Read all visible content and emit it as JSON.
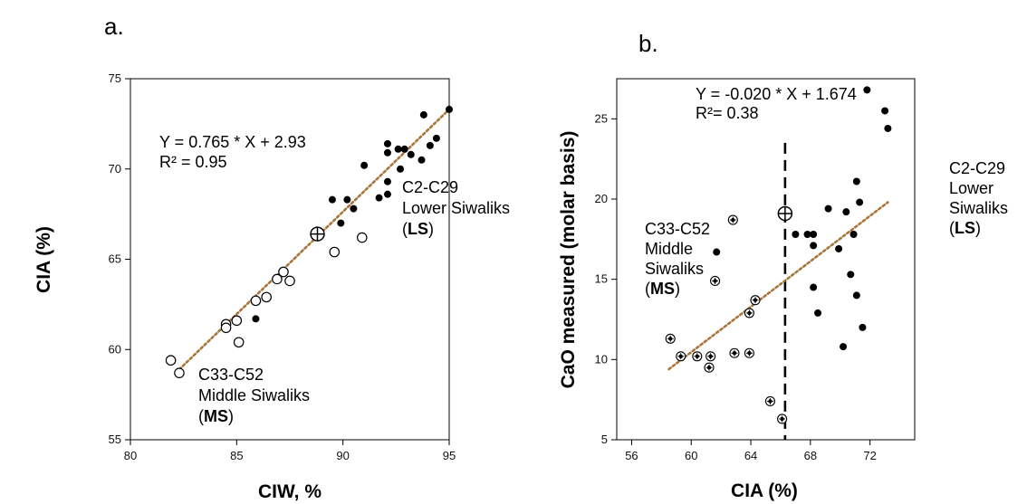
{
  "chart_data": [
    {
      "panel_label": "a.",
      "type": "scatter",
      "xlabel": "CIW, %",
      "ylabel": "CIA (%)",
      "xlim": [
        80,
        95
      ],
      "ylim": [
        55,
        75
      ],
      "xticks": [
        "80",
        "85",
        "90",
        "95"
      ],
      "yticks": [
        "55",
        "60",
        "65",
        "70",
        "75"
      ],
      "trendline": {
        "x": [
          82.3,
          95.0
        ],
        "y": [
          58.9,
          73.3
        ],
        "color": "#a8753a",
        "style": "dotted"
      },
      "equation": [
        "Y = 0.765 * X + 2.93",
        "R² = 0.95"
      ],
      "group_labels": [
        {
          "lines": [
            [
              {
                "t": "C2-C29",
                "b": false
              }
            ],
            [
              {
                "t": "Lower Siwaliks",
                "b": false
              }
            ],
            [
              {
                "t": "(",
                "b": false
              },
              {
                "t": "LS",
                "b": true
              },
              {
                "t": ")",
                "b": false
              }
            ]
          ]
        },
        {
          "lines": [
            [
              {
                "t": "C33-C52",
                "b": false
              }
            ],
            [
              {
                "t": "Middle Siwaliks",
                "b": false
              }
            ],
            [
              {
                "t": "(",
                "b": false
              },
              {
                "t": "MS",
                "b": true
              },
              {
                "t": ")",
                "b": false
              }
            ]
          ]
        }
      ],
      "series": [
        {
          "name": "Lower Siwaliks",
          "marker": "filled-circle",
          "points": [
            [
              95.0,
              73.3
            ],
            [
              93.8,
              73.0
            ],
            [
              94.4,
              71.7
            ],
            [
              94.1,
              71.3
            ],
            [
              93.7,
              70.5
            ],
            [
              93.2,
              70.8
            ],
            [
              92.9,
              71.1
            ],
            [
              92.6,
              71.1
            ],
            [
              92.7,
              70.0
            ],
            [
              92.1,
              71.4
            ],
            [
              92.1,
              70.9
            ],
            [
              91.0,
              70.2
            ],
            [
              92.1,
              69.3
            ],
            [
              92.1,
              68.6
            ],
            [
              91.7,
              68.4
            ],
            [
              90.2,
              68.3
            ],
            [
              89.5,
              68.3
            ],
            [
              90.5,
              67.8
            ],
            [
              89.9,
              67.0
            ],
            [
              85.9,
              61.7
            ]
          ]
        },
        {
          "name": "Middle Siwaliks",
          "marker": "open-circle",
          "points": [
            [
              90.9,
              66.2
            ],
            [
              89.6,
              65.4
            ],
            [
              87.2,
              64.3
            ],
            [
              87.5,
              63.8
            ],
            [
              86.9,
              63.9
            ],
            [
              86.4,
              62.9
            ],
            [
              85.9,
              62.7
            ],
            [
              85.0,
              61.6
            ],
            [
              84.5,
              61.4
            ],
            [
              84.5,
              61.2
            ],
            [
              85.1,
              60.4
            ],
            [
              82.3,
              58.7
            ],
            [
              81.9,
              59.4
            ]
          ]
        },
        {
          "name": "crossed",
          "marker": "crossed-circle",
          "points": [
            [
              88.8,
              66.4
            ]
          ]
        }
      ]
    },
    {
      "panel_label": "b.",
      "type": "scatter",
      "xlabel": "CIA (%)",
      "ylabel": "CaO measured (molar basis)",
      "xlim": [
        55,
        75
      ],
      "ylim": [
        5,
        27.5
      ],
      "xticks": [
        "56",
        "60",
        "64",
        "68",
        "72"
      ],
      "yticks": [
        "5",
        "10",
        "15",
        "20",
        "25"
      ],
      "trendline": {
        "x": [
          58.5,
          73.2
        ],
        "y": [
          9.4,
          19.8
        ],
        "color": "#a8753a",
        "style": "dotted"
      },
      "vline": {
        "x": 66.3,
        "y_top": 23.5,
        "style": "dashed"
      },
      "equation": [
        "Y = -0.020 * X + 1.674",
        "R²= 0.38"
      ],
      "group_labels": [
        {
          "lines": [
            [
              {
                "t": "C2-C29",
                "b": false
              }
            ],
            [
              {
                "t": "Lower",
                "b": false
              }
            ],
            [
              {
                "t": "Siwaliks",
                "b": false
              }
            ],
            [
              {
                "t": "(",
                "b": false
              },
              {
                "t": "LS",
                "b": true
              },
              {
                "t": ")",
                "b": false
              }
            ]
          ]
        },
        {
          "lines": [
            [
              {
                "t": "C33-C52",
                "b": false
              }
            ],
            [
              {
                "t": "Middle",
                "b": false
              }
            ],
            [
              {
                "t": "Siwaliks",
                "b": false
              }
            ],
            [
              {
                "t": "(",
                "b": false
              },
              {
                "t": "MS",
                "b": true
              },
              {
                "t": ")",
                "b": false
              }
            ]
          ]
        }
      ],
      "series": [
        {
          "name": "Lower Siwaliks",
          "marker": "filled-circle",
          "points": [
            [
              71.8,
              26.8
            ],
            [
              73.0,
              25.5
            ],
            [
              73.2,
              24.4
            ],
            [
              71.1,
              21.1
            ],
            [
              71.3,
              19.8
            ],
            [
              69.2,
              19.4
            ],
            [
              70.4,
              19.2
            ],
            [
              67.0,
              17.8
            ],
            [
              67.8,
              17.8
            ],
            [
              68.2,
              17.8
            ],
            [
              70.9,
              17.8
            ],
            [
              68.2,
              17.1
            ],
            [
              69.9,
              16.9
            ],
            [
              61.7,
              16.7
            ],
            [
              70.7,
              15.3
            ],
            [
              68.2,
              14.5
            ],
            [
              71.1,
              14.0
            ],
            [
              68.5,
              12.9
            ],
            [
              71.5,
              12.0
            ],
            [
              70.2,
              10.8
            ]
          ]
        },
        {
          "name": "Middle Siwaliks",
          "marker": "crossed-small",
          "points": [
            [
              62.8,
              18.7
            ],
            [
              61.6,
              14.9
            ],
            [
              64.3,
              13.7
            ],
            [
              63.9,
              12.9
            ],
            [
              58.6,
              11.3
            ],
            [
              59.3,
              10.2
            ],
            [
              60.4,
              10.2
            ],
            [
              61.3,
              10.2
            ],
            [
              62.9,
              10.4
            ],
            [
              63.9,
              10.4
            ],
            [
              61.2,
              9.5
            ],
            [
              65.3,
              7.4
            ],
            [
              66.1,
              6.3
            ]
          ]
        },
        {
          "name": "crossed",
          "marker": "crossed-circle",
          "points": [
            [
              66.3,
              19.1
            ]
          ]
        }
      ]
    }
  ]
}
